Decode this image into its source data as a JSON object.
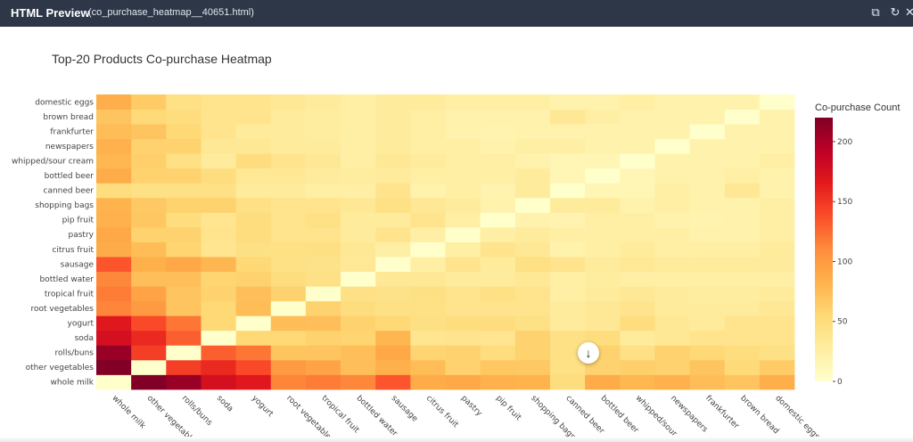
{
  "window": {
    "app_title": "HTML Preview",
    "file_name": "(co_purchase_heatmap__40651.html)",
    "icons": [
      "copy-icon",
      "refresh-icon",
      "close-icon"
    ]
  },
  "chart_data": {
    "type": "heatmap",
    "title": "Top-20 Products Co-purchase Heatmap",
    "colorbar_title": "Co-purchase Count",
    "colorbar_ticks": [
      0,
      50,
      100,
      150,
      200
    ],
    "zrange": [
      0,
      220
    ],
    "colorscale": [
      "#ffffcc",
      "#ffeda0",
      "#fed976",
      "#feb24c",
      "#fd8d3c",
      "#fc4e2a",
      "#e31a1c",
      "#bd0026",
      "#800026"
    ],
    "products": [
      "whole milk",
      "other vegetables",
      "rolls/buns",
      "soda",
      "yogurt",
      "root vegetables",
      "tropical fruit",
      "bottled water",
      "sausage",
      "citrus fruit",
      "pastry",
      "pip fruit",
      "shopping bags",
      "canned beer",
      "bottled beer",
      "whipped/sour cream",
      "newspapers",
      "frankfurter",
      "brown bread",
      "domestic eggs"
    ],
    "x_tick_labels": [
      "whole milk",
      "other vegetables",
      "rolls/buns",
      "soda",
      "yogurt",
      "root vegetables",
      "tropical fruit",
      "bottled water",
      "sausage",
      "citrus fruit",
      "pastry",
      "pip fruit",
      "shopping bags",
      "canned beer",
      "bottled beer",
      "whipped/sour cr",
      "newspapers",
      "frankfurter",
      "brown bread",
      "domestic eggs"
    ],
    "z": [
      [
        0,
        222,
        209,
        176,
        167,
        113,
        117,
        112,
        135,
        88,
        90,
        83,
        82,
        50,
        88,
        79,
        83,
        75,
        70,
        85
      ],
      [
        222,
        0,
        146,
        157,
        140,
        100,
        93,
        73,
        84,
        75,
        60,
        68,
        67,
        45,
        60,
        62,
        60,
        70,
        53,
        65
      ],
      [
        209,
        146,
        0,
        130,
        120,
        70,
        70,
        73,
        90,
        58,
        60,
        50,
        60,
        45,
        60,
        45,
        60,
        55,
        50,
        45
      ],
      [
        176,
        157,
        130,
        0,
        55,
        55,
        60,
        58,
        80,
        38,
        40,
        38,
        60,
        45,
        50,
        30,
        35,
        40,
        40,
        40
      ],
      [
        167,
        140,
        120,
        55,
        0,
        75,
        73,
        60,
        55,
        46,
        50,
        50,
        45,
        30,
        35,
        50,
        35,
        30,
        40,
        40
      ],
      [
        113,
        100,
        70,
        55,
        75,
        0,
        60,
        50,
        45,
        45,
        40,
        40,
        40,
        30,
        35,
        40,
        30,
        30,
        30,
        35
      ],
      [
        117,
        93,
        70,
        60,
        73,
        60,
        0,
        44,
        42,
        46,
        40,
        45,
        40,
        25,
        30,
        35,
        30,
        28,
        28,
        30
      ],
      [
        112,
        73,
        73,
        58,
        60,
        50,
        44,
        0,
        35,
        35,
        30,
        30,
        35,
        25,
        28,
        25,
        25,
        25,
        25,
        25
      ],
      [
        135,
        84,
        90,
        80,
        55,
        45,
        42,
        35,
        0,
        25,
        40,
        30,
        45,
        40,
        30,
        35,
        30,
        30,
        30,
        30
      ],
      [
        88,
        75,
        58,
        38,
        46,
        45,
        46,
        35,
        25,
        0,
        25,
        40,
        35,
        20,
        25,
        30,
        25,
        25,
        25,
        30
      ],
      [
        90,
        60,
        60,
        40,
        50,
        40,
        40,
        30,
        40,
        25,
        0,
        25,
        30,
        25,
        25,
        25,
        25,
        20,
        20,
        25
      ],
      [
        83,
        68,
        50,
        38,
        50,
        40,
        45,
        30,
        30,
        40,
        25,
        0,
        20,
        18,
        25,
        25,
        20,
        18,
        20,
        25
      ],
      [
        82,
        67,
        60,
        60,
        45,
        40,
        40,
        35,
        45,
        35,
        30,
        20,
        0,
        30,
        30,
        20,
        25,
        20,
        20,
        25
      ],
      [
        50,
        45,
        45,
        45,
        30,
        30,
        25,
        25,
        40,
        20,
        25,
        18,
        30,
        0,
        15,
        15,
        25,
        20,
        35,
        20
      ],
      [
        88,
        60,
        60,
        50,
        35,
        35,
        30,
        28,
        30,
        25,
        25,
        25,
        30,
        15,
        0,
        15,
        20,
        20,
        25,
        20
      ],
      [
        79,
        62,
        45,
        30,
        50,
        40,
        35,
        25,
        35,
        30,
        25,
        25,
        20,
        15,
        15,
        0,
        20,
        20,
        20,
        25
      ],
      [
        83,
        60,
        60,
        35,
        35,
        30,
        30,
        25,
        30,
        25,
        25,
        20,
        25,
        25,
        20,
        20,
        0,
        20,
        20,
        20
      ],
      [
        75,
        70,
        55,
        40,
        30,
        30,
        28,
        25,
        30,
        25,
        20,
        18,
        20,
        20,
        20,
        20,
        20,
        0,
        20,
        20
      ],
      [
        70,
        53,
        50,
        40,
        40,
        30,
        28,
        25,
        30,
        25,
        20,
        20,
        20,
        35,
        25,
        20,
        20,
        20,
        0,
        20
      ],
      [
        85,
        65,
        45,
        40,
        40,
        35,
        30,
        25,
        30,
        30,
        25,
        25,
        25,
        20,
        20,
        25,
        20,
        20,
        20,
        0
      ]
    ]
  }
}
